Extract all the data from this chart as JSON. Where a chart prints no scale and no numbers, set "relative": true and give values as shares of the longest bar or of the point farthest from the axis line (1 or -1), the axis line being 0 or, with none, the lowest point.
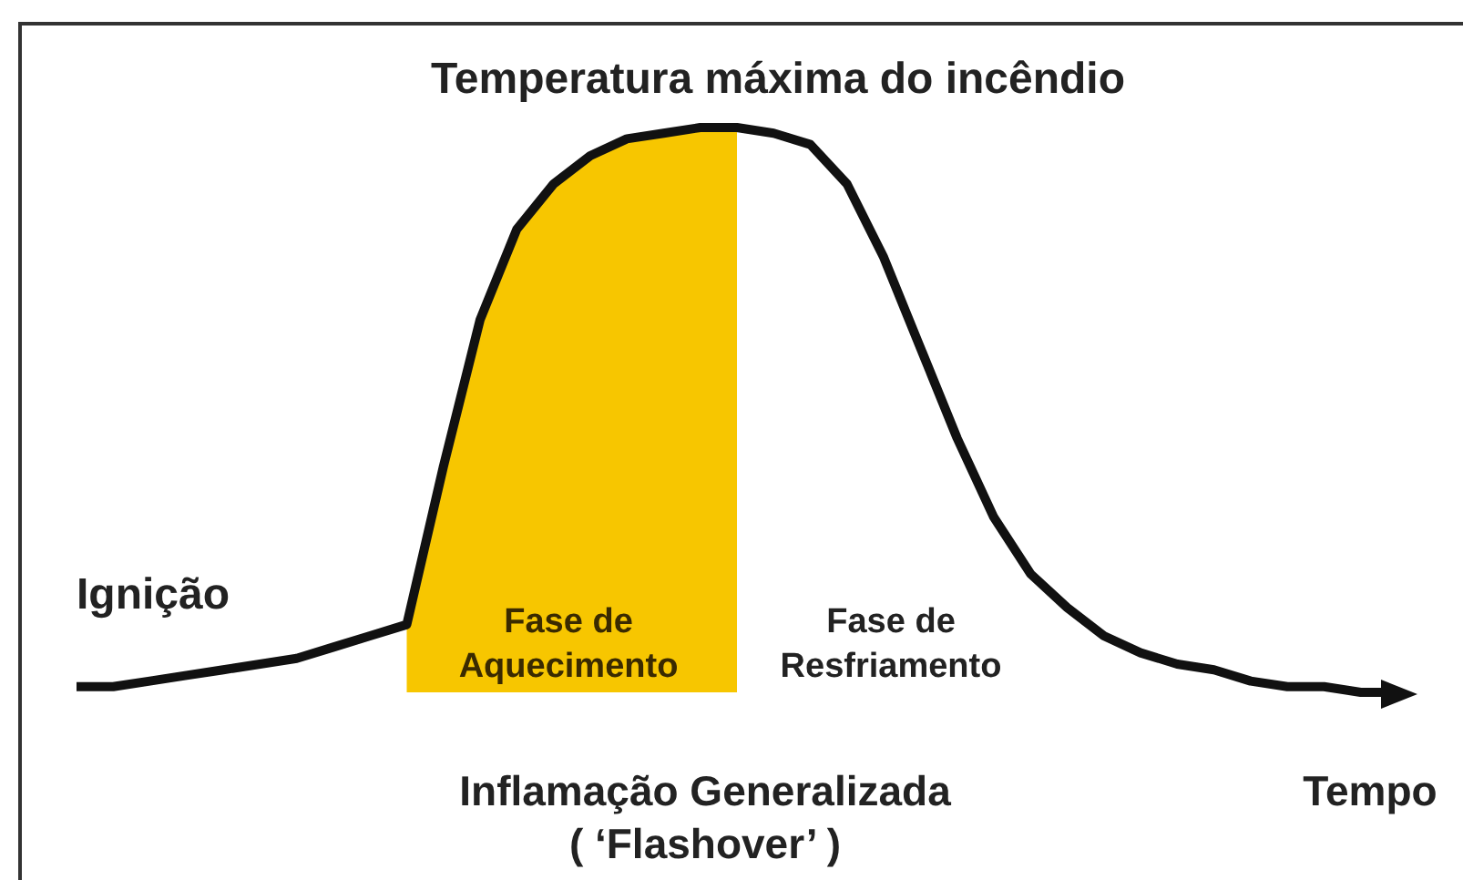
{
  "chart_data": {
    "type": "line",
    "relative": true,
    "xlabel": "Tempo",
    "categories": [
      null,
      null,
      null,
      null,
      null,
      null,
      null,
      null,
      null,
      null,
      null,
      null,
      null,
      null,
      null,
      null,
      null,
      null,
      null,
      null,
      null,
      null,
      null,
      null,
      null,
      null,
      null,
      null,
      null,
      null,
      null,
      null,
      null,
      null,
      null,
      null,
      null
    ],
    "series": [
      {
        "type": "area",
        "color": "#f7c600",
        "values": [
          null,
          null,
          null,
          null,
          null,
          null,
          null,
          null,
          null,
          0.12,
          0.4,
          0.66,
          0.82,
          0.9,
          0.95,
          0.98,
          0.99,
          1,
          1,
          null,
          null,
          null,
          null,
          null,
          null,
          null,
          null,
          null,
          null,
          null,
          null,
          null,
          null,
          null,
          null,
          null,
          null
        ]
      },
      {
        "color": "#111111",
        "values": [
          0.01,
          0.01,
          0.02,
          0.03,
          0.04,
          0.05,
          0.06,
          0.08,
          0.1,
          0.12,
          0.4,
          0.66,
          0.82,
          0.9,
          0.95,
          0.98,
          0.99,
          1,
          1,
          0.99,
          0.97,
          0.9,
          0.77,
          0.61,
          0.45,
          0.31,
          0.21,
          0.15,
          0.1,
          0.07,
          0.05,
          0.04,
          0.02,
          0.01,
          0.01,
          0,
          0
        ]
      }
    ],
    "annotations": [
      "Temperatura máxima do incêndio",
      "Ignição",
      "Fase de\nAquecimento",
      "Fase de\nResfriamento",
      "Inflamação Generalizada\n( ‘Flashover’ )"
    ],
    "marker": "none",
    "line_style": "solid"
  }
}
